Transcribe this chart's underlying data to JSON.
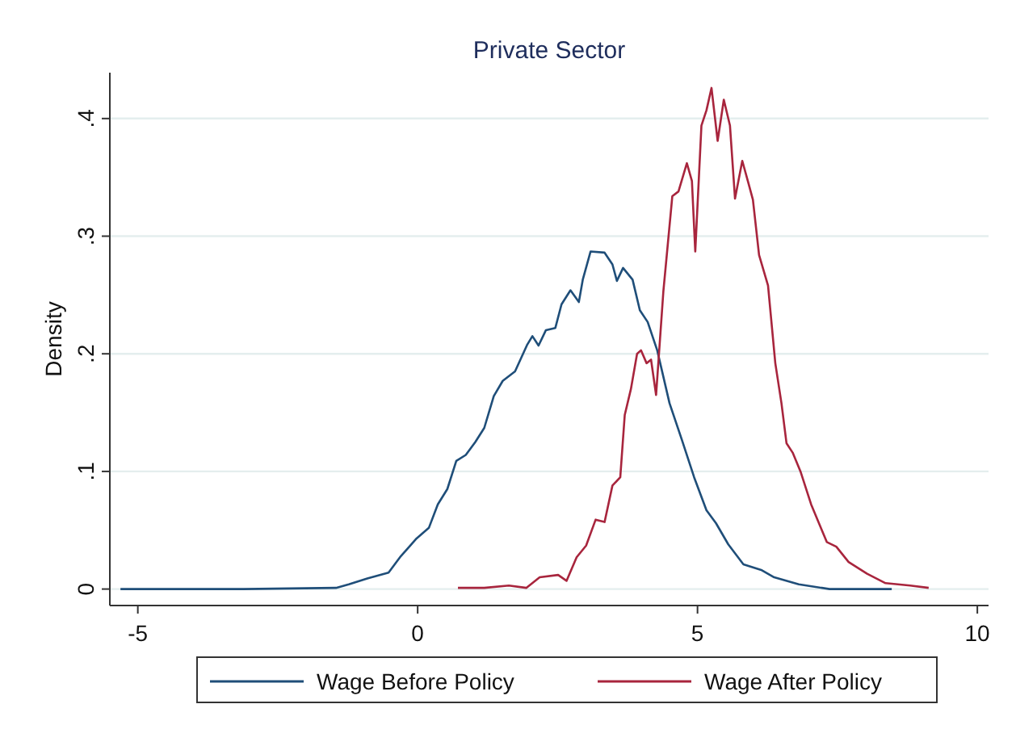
{
  "chart_data": {
    "type": "line",
    "title": "Private Sector",
    "ylabel": "Density",
    "xlim": [
      -5.5,
      10.2
    ],
    "ylim": [
      -0.014,
      0.439
    ],
    "xticks": [
      -5,
      0,
      5,
      10
    ],
    "yticks": [
      0,
      {
        "value": 0.1,
        "label": ".1"
      },
      {
        "value": 0.2,
        "label": ".2"
      },
      {
        "value": 0.3,
        "label": ".3"
      },
      {
        "value": 0.4,
        "label": ".4"
      }
    ],
    "grid": "y",
    "legend": "bottom",
    "marker": "none",
    "line_style": "solid",
    "series": [
      {
        "name": "Wage Before Policy",
        "color": "#1f4e79",
        "x": [
          -5.31,
          -3.11,
          -1.46,
          -1.23,
          -0.9,
          -0.52,
          -0.3,
          -0.02,
          0.2,
          0.36,
          0.53,
          0.69,
          0.86,
          1.03,
          1.19,
          1.36,
          1.52,
          1.74,
          1.96,
          2.05,
          2.16,
          2.29,
          2.46,
          2.57,
          2.73,
          2.88,
          2.95,
          3.09,
          3.34,
          3.48,
          3.56,
          3.67,
          3.84,
          3.97,
          4.11,
          4.28,
          4.5,
          4.72,
          4.94,
          5.16,
          5.33,
          5.55,
          5.82,
          6.15,
          6.37,
          6.81,
          7.36,
          8.47
        ],
        "values": [
          0,
          0,
          0.001,
          0.004,
          0.009,
          0.014,
          0.028,
          0.043,
          0.052,
          0.072,
          0.085,
          0.109,
          0.114,
          0.125,
          0.137,
          0.164,
          0.177,
          0.185,
          0.208,
          0.215,
          0.207,
          0.22,
          0.222,
          0.242,
          0.254,
          0.244,
          0.263,
          0.287,
          0.286,
          0.276,
          0.262,
          0.273,
          0.263,
          0.237,
          0.227,
          0.203,
          0.158,
          0.127,
          0.095,
          0.067,
          0.056,
          0.038,
          0.021,
          0.016,
          0.01,
          0.004,
          0,
          0
        ]
      },
      {
        "name": "Wage After Policy",
        "color": "#a8253d",
        "x": [
          0.72,
          1.19,
          1.63,
          1.94,
          2.18,
          2.51,
          2.66,
          2.84,
          3.01,
          3.18,
          3.34,
          3.48,
          3.62,
          3.7,
          3.81,
          3.92,
          3.99,
          4.09,
          4.17,
          4.26,
          4.39,
          4.55,
          4.66,
          4.81,
          4.9,
          4.96,
          5.07,
          5.16,
          5.25,
          5.36,
          5.47,
          5.58,
          5.67,
          5.8,
          5.91,
          5.99,
          6.1,
          6.26,
          6.39,
          6.5,
          6.59,
          6.7,
          6.84,
          7.03,
          7.31,
          7.48,
          7.7,
          8.03,
          8.36,
          8.8,
          9.13
        ],
        "values": [
          0.001,
          0.001,
          0.003,
          0.001,
          0.01,
          0.012,
          0.007,
          0.027,
          0.037,
          0.059,
          0.057,
          0.088,
          0.095,
          0.148,
          0.17,
          0.2,
          0.203,
          0.192,
          0.195,
          0.165,
          0.253,
          0.334,
          0.338,
          0.362,
          0.347,
          0.287,
          0.394,
          0.407,
          0.426,
          0.381,
          0.416,
          0.394,
          0.332,
          0.364,
          0.345,
          0.331,
          0.284,
          0.258,
          0.192,
          0.158,
          0.124,
          0.116,
          0.1,
          0.072,
          0.04,
          0.036,
          0.023,
          0.013,
          0.005,
          0.003,
          0.001
        ]
      }
    ]
  }
}
